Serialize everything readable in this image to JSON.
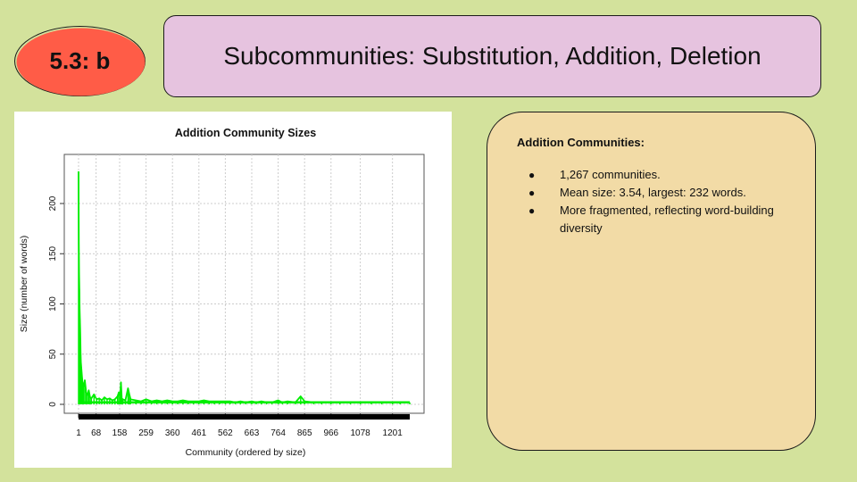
{
  "slide": {
    "badge": "5.3: b",
    "title": "Subcommunities: Substitution, Addition, Deletion",
    "colors": {
      "background": "#d3e29c",
      "badge": "#ff5c47",
      "title_box": "#e6c3df",
      "info_box": "#f2dba6",
      "line": "#00ee00"
    }
  },
  "info": {
    "heading": "Addition Communities:",
    "bullets": [
      "1,267 communities.",
      "Mean size: 3.54, largest: 232 words.",
      "More fragmented, reflecting word-building diversity"
    ]
  },
  "chart_data": {
    "type": "line",
    "title": "Addition Community Sizes",
    "xlabel": "Community (ordered by size)",
    "ylabel": "Size (number of words)",
    "xlim": [
      1,
      1267
    ],
    "ylim": [
      0,
      240
    ],
    "x_tick_labels": [
      "1",
      "68",
      "158",
      "259",
      "360",
      "461",
      "562",
      "663",
      "764",
      "865",
      "966",
      "1078",
      "1201"
    ],
    "y_ticks": [
      0,
      50,
      100,
      150,
      200
    ],
    "grid": true,
    "series_color": "#00ee00",
    "points": [
      [
        1,
        232
      ],
      [
        2,
        160
      ],
      [
        3,
        130
      ],
      [
        4,
        115
      ],
      [
        5,
        95
      ],
      [
        6,
        85
      ],
      [
        7,
        75
      ],
      [
        8,
        62
      ],
      [
        9,
        50
      ],
      [
        10,
        42
      ],
      [
        12,
        35
      ],
      [
        14,
        28
      ],
      [
        16,
        22
      ],
      [
        20,
        18
      ],
      [
        25,
        24
      ],
      [
        30,
        12
      ],
      [
        35,
        9
      ],
      [
        40,
        14
      ],
      [
        45,
        7
      ],
      [
        50,
        6
      ],
      [
        60,
        10
      ],
      [
        70,
        5
      ],
      [
        80,
        6
      ],
      [
        90,
        4
      ],
      [
        100,
        7
      ],
      [
        110,
        5
      ],
      [
        120,
        6
      ],
      [
        130,
        4
      ],
      [
        140,
        5
      ],
      [
        150,
        8
      ],
      [
        155,
        12
      ],
      [
        160,
        9
      ],
      [
        163,
        22
      ],
      [
        166,
        6
      ],
      [
        170,
        5
      ],
      [
        180,
        4
      ],
      [
        190,
        16
      ],
      [
        195,
        10
      ],
      [
        200,
        5
      ],
      [
        220,
        4
      ],
      [
        240,
        3
      ],
      [
        259,
        5
      ],
      [
        280,
        3
      ],
      [
        300,
        4
      ],
      [
        320,
        3
      ],
      [
        340,
        4
      ],
      [
        360,
        3
      ],
      [
        380,
        3
      ],
      [
        400,
        4
      ],
      [
        420,
        3
      ],
      [
        440,
        3
      ],
      [
        461,
        3
      ],
      [
        480,
        4
      ],
      [
        500,
        3
      ],
      [
        520,
        3
      ],
      [
        540,
        3
      ],
      [
        562,
        3
      ],
      [
        580,
        3
      ],
      [
        600,
        2
      ],
      [
        620,
        3
      ],
      [
        640,
        2
      ],
      [
        663,
        3
      ],
      [
        680,
        2
      ],
      [
        700,
        3
      ],
      [
        720,
        2
      ],
      [
        740,
        2
      ],
      [
        764,
        4
      ],
      [
        780,
        2
      ],
      [
        800,
        3
      ],
      [
        830,
        2
      ],
      [
        850,
        8
      ],
      [
        865,
        3
      ],
      [
        900,
        2
      ],
      [
        930,
        2
      ],
      [
        966,
        2
      ],
      [
        1000,
        2
      ],
      [
        1040,
        2
      ],
      [
        1078,
        2
      ],
      [
        1120,
        2
      ],
      [
        1160,
        2
      ],
      [
        1201,
        2
      ],
      [
        1230,
        2
      ],
      [
        1267,
        2
      ]
    ]
  }
}
